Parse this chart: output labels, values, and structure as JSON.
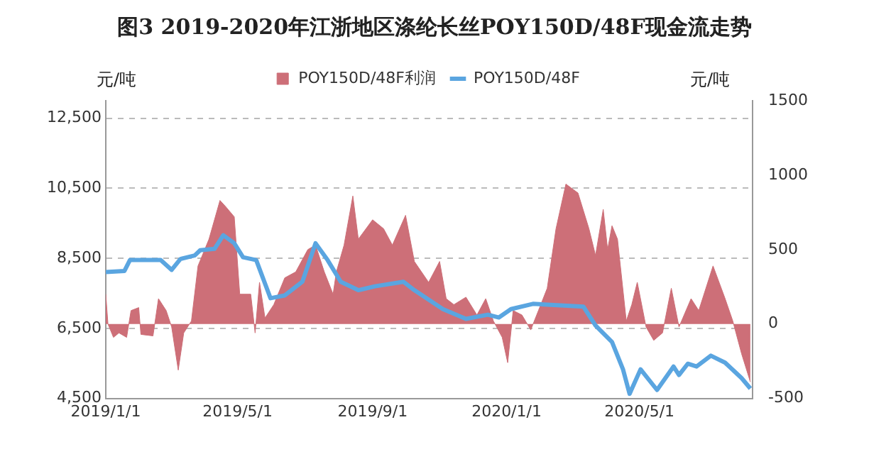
{
  "chart_data": {
    "type": "area",
    "title": "图3 2019-2020年江浙地区涤纶长丝POY150D/48F现金流走势",
    "ylabel": "元/吨",
    "y2label": "元/吨",
    "xlim": [
      "2019-01-01",
      "2020-08-12"
    ],
    "xticks": [
      {
        "value": "2019-01-01",
        "label": "2019/1/1"
      },
      {
        "value": "2019-05-01",
        "label": "2019/5/1"
      },
      {
        "value": "2019-09-01",
        "label": "2019/9/1"
      },
      {
        "value": "2020-01-01",
        "label": "2020/1/1"
      },
      {
        "value": "2020-05-01",
        "label": "2020/5/1"
      }
    ],
    "ylim": [
      4500,
      13000
    ],
    "yticks": [
      {
        "value": 4500,
        "label": "4,500"
      },
      {
        "value": 6500,
        "label": "6,500"
      },
      {
        "value": 8500,
        "label": "8,500"
      },
      {
        "value": 10500,
        "label": "10,500"
      },
      {
        "value": 12500,
        "label": "12,500"
      }
    ],
    "y2lim": [
      -500,
      1500
    ],
    "y2ticks": [
      -500,
      0,
      500,
      1000,
      1500
    ],
    "grid": "y",
    "legend": "top",
    "series": [
      {
        "name": "POY150D/48F利润",
        "axis": "y2",
        "color": "#cd6f78",
        "x": [
          "2019-01-01",
          "2019-01-03",
          "2019-01-08",
          "2019-01-13",
          "2019-01-20",
          "2019-01-24",
          "2019-01-31",
          "2019-02-02",
          "2019-02-13",
          "2019-02-18",
          "2019-02-25",
          "2019-03-02",
          "2019-03-08",
          "2019-03-13",
          "2019-03-20",
          "2019-03-26",
          "2019-04-05",
          "2019-04-15",
          "2019-04-20",
          "2019-04-28",
          "2019-05-03",
          "2019-05-13",
          "2019-05-17",
          "2019-05-21",
          "2019-05-26",
          "2019-06-03",
          "2019-06-13",
          "2019-06-23",
          "2019-07-04",
          "2019-07-11",
          "2019-07-19",
          "2019-07-27",
          "2019-07-30",
          "2019-08-06",
          "2019-08-14",
          "2019-08-19",
          "2019-09-01",
          "2019-09-11",
          "2019-09-19",
          "2019-10-01",
          "2019-10-09",
          "2019-10-22",
          "2019-11-01",
          "2019-11-07",
          "2019-11-14",
          "2019-11-25",
          "2019-12-05",
          "2019-12-13",
          "2019-12-20",
          "2019-12-28",
          "2020-01-02",
          "2020-01-07",
          "2020-01-15",
          "2020-01-23",
          "2020-01-30",
          "2020-02-07",
          "2020-02-15",
          "2020-02-24",
          "2020-03-06",
          "2020-03-16",
          "2020-03-22",
          "2020-03-29",
          "2020-04-02",
          "2020-04-06",
          "2020-04-11",
          "2020-04-19",
          "2020-04-24",
          "2020-04-29",
          "2020-05-07",
          "2020-05-14",
          "2020-05-22",
          "2020-05-30",
          "2020-06-06",
          "2020-06-17",
          "2020-06-24",
          "2020-07-07",
          "2020-07-18",
          "2020-07-25",
          "2020-08-02",
          "2020-08-10"
        ],
        "values": [
          200,
          0,
          -90,
          -60,
          -90,
          90,
          110,
          -70,
          -80,
          170,
          90,
          -20,
          -310,
          -60,
          20,
          390,
          570,
          830,
          790,
          720,
          200,
          200,
          -60,
          280,
          40,
          130,
          310,
          350,
          500,
          530,
          350,
          200,
          350,
          530,
          860,
          570,
          700,
          640,
          530,
          730,
          420,
          280,
          420,
          170,
          130,
          180,
          60,
          170,
          20,
          -90,
          -260,
          90,
          60,
          -40,
          90,
          240,
          640,
          940,
          880,
          640,
          460,
          770,
          500,
          660,
          570,
          20,
          130,
          280,
          -20,
          -110,
          -60,
          240,
          -20,
          170,
          90,
          390,
          170,
          20,
          -200,
          -390
        ]
      },
      {
        "name": "POY150D/48F",
        "type": "line",
        "color": "#5aa5e0",
        "x": [
          "2019-01-01",
          "2019-01-18",
          "2019-01-23",
          "2019-02-20",
          "2019-03-02",
          "2019-03-10",
          "2019-03-23",
          "2019-03-28",
          "2019-04-10",
          "2019-04-18",
          "2019-04-28",
          "2019-05-06",
          "2019-05-18",
          "2019-05-31",
          "2019-06-13",
          "2019-06-29",
          "2019-07-11",
          "2019-07-22",
          "2019-08-03",
          "2019-08-19",
          "2019-09-03",
          "2019-09-29",
          "2019-10-09",
          "2019-11-04",
          "2019-11-25",
          "2019-12-15",
          "2019-12-25",
          "2020-01-05",
          "2020-01-25",
          "2020-03-11",
          "2020-03-22",
          "2020-04-06",
          "2020-04-16",
          "2020-04-22",
          "2020-05-02",
          "2020-05-17",
          "2020-06-01",
          "2020-06-06",
          "2020-06-14",
          "2020-06-22",
          "2020-07-05",
          "2020-07-18",
          "2020-08-02",
          "2020-08-10"
        ],
        "values": [
          8110,
          8140,
          8450,
          8450,
          8170,
          8480,
          8580,
          8730,
          8770,
          9160,
          8930,
          8530,
          8450,
          7360,
          7440,
          7830,
          8930,
          8450,
          7830,
          7590,
          7700,
          7830,
          7590,
          7050,
          6770,
          6890,
          6810,
          7050,
          7200,
          7120,
          6580,
          6110,
          5330,
          4630,
          5330,
          4740,
          5410,
          5170,
          5490,
          5410,
          5720,
          5520,
          5080,
          4780
        ]
      }
    ]
  }
}
